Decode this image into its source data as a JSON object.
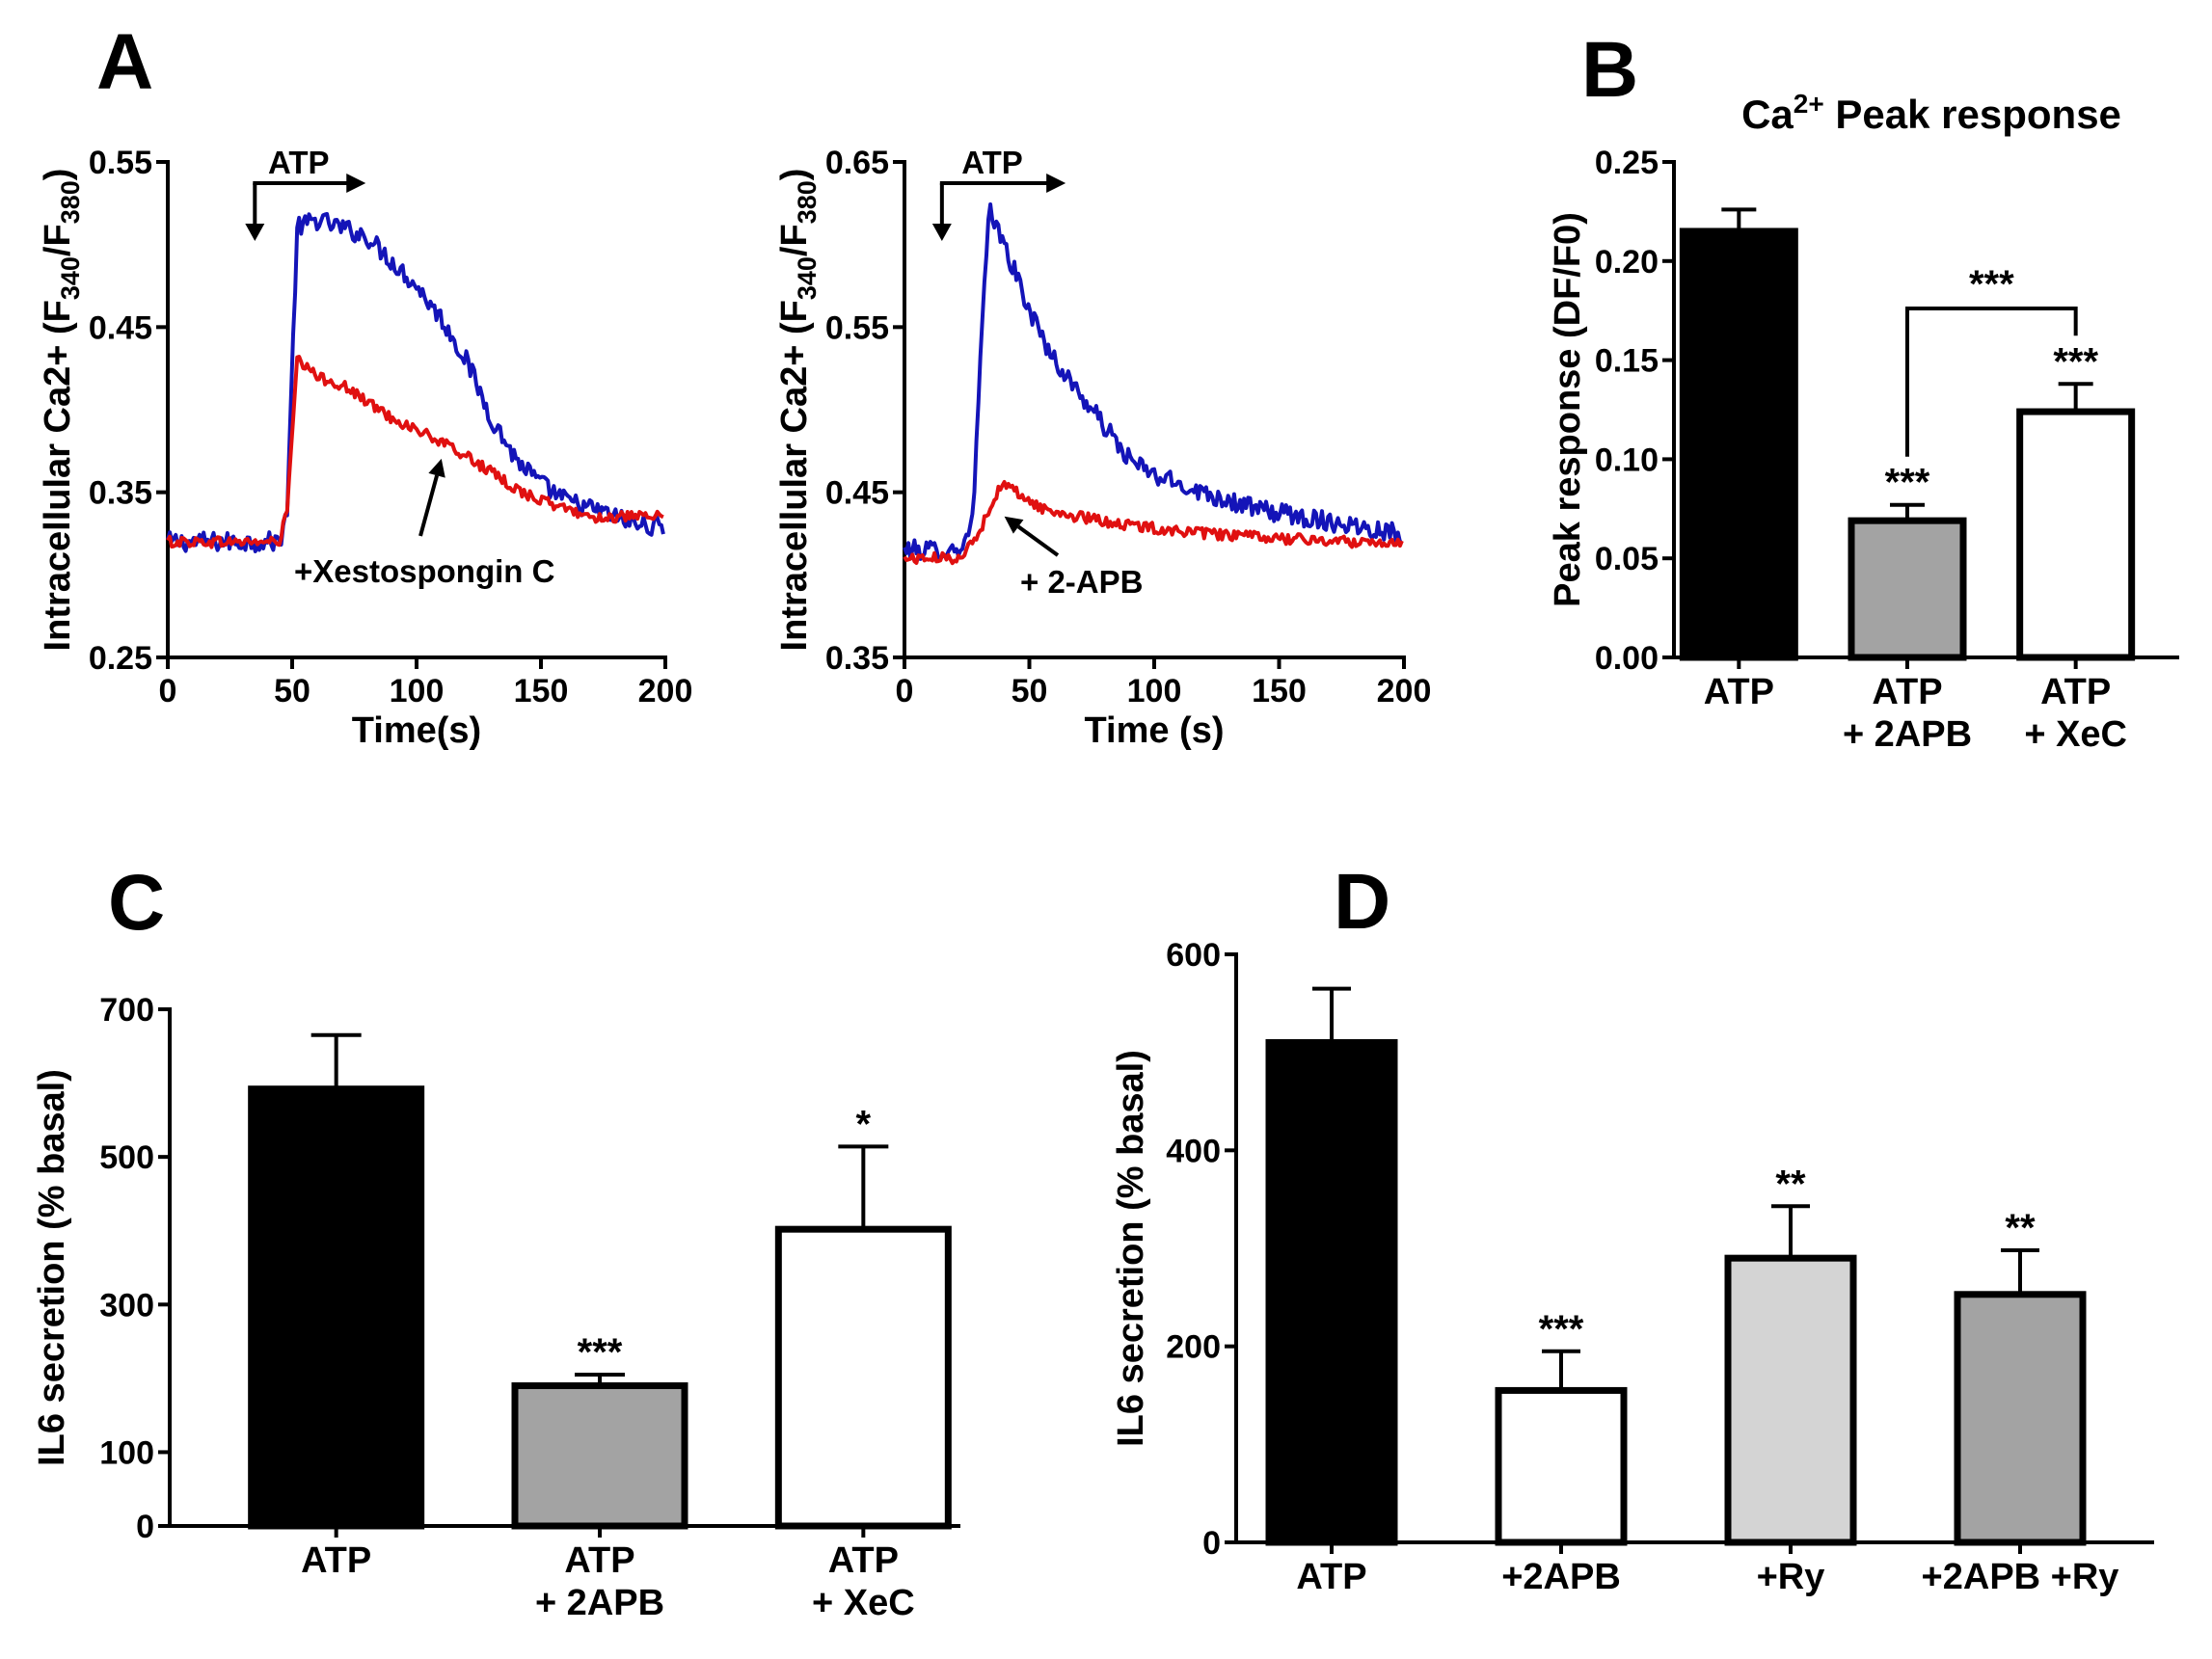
{
  "panel_labels": {
    "a": "A",
    "b": "B",
    "c": "C",
    "d": "D"
  },
  "colors": {
    "control": "#1414b8",
    "treated": "#e01010",
    "black": "#000000",
    "gray": "#a3a3a3",
    "light_gray": "#d4d4d4",
    "white": "#ffffff"
  },
  "chart_data": [
    {
      "id": "A1",
      "type": "line",
      "xlabel": "Time(s)",
      "ylabel_parts": [
        "Intracellular Ca2+ (F",
        "340",
        "/F",
        "380",
        ")"
      ],
      "ylim": [
        0.25,
        0.55
      ],
      "yticks": [
        0.25,
        0.35,
        0.45,
        0.55
      ],
      "ytick_labels": [
        "0.25",
        "0.35",
        "0.45",
        "0.55"
      ],
      "xlim": [
        0,
        200
      ],
      "xticks": [
        0,
        50,
        100,
        150,
        200
      ],
      "xtick_labels": [
        "0",
        "50",
        "100",
        "150",
        "200"
      ],
      "stimulus": {
        "label": "ATP",
        "start_s": 35,
        "end_s": 78
      },
      "annotation": {
        "text": "+Xestospongin C",
        "points_to_s": 110,
        "points_to_value": 0.375
      },
      "series": [
        {
          "name": "control",
          "color": "#1414b8",
          "x": [
            0,
            35,
            40,
            45,
            48,
            52,
            60,
            70,
            80,
            90,
            100,
            110,
            120,
            130,
            140,
            150,
            160,
            170,
            180,
            190,
            200
          ],
          "y": [
            0.32,
            0.32,
            0.32,
            0.32,
            0.34,
            0.51,
            0.515,
            0.51,
            0.505,
            0.49,
            0.475,
            0.455,
            0.43,
            0.395,
            0.37,
            0.355,
            0.345,
            0.34,
            0.335,
            0.33,
            0.33
          ]
        },
        {
          "name": "treated",
          "color": "#e01010",
          "x": [
            0,
            35,
            40,
            45,
            48,
            52,
            60,
            70,
            80,
            90,
            100,
            110,
            120,
            130,
            140,
            150,
            160,
            170,
            180,
            190,
            200
          ],
          "y": [
            0.32,
            0.32,
            0.32,
            0.32,
            0.34,
            0.43,
            0.42,
            0.415,
            0.405,
            0.395,
            0.388,
            0.38,
            0.372,
            0.362,
            0.352,
            0.345,
            0.34,
            0.335,
            0.335,
            0.335,
            0.335
          ]
        }
      ]
    },
    {
      "id": "A2",
      "type": "line",
      "xlabel": "Time (s)",
      "ylabel_parts": [
        "Intracellular Ca2+ (F",
        "340",
        "/F",
        "380",
        ")"
      ],
      "ylim": [
        0.35,
        0.65
      ],
      "yticks": [
        0.35,
        0.45,
        0.55,
        0.65
      ],
      "ytick_labels": [
        "0.35",
        "0.45",
        "0.55",
        "0.65"
      ],
      "xlim": [
        0,
        200
      ],
      "xticks": [
        0,
        50,
        100,
        150,
        200
      ],
      "xtick_labels": [
        "0",
        "50",
        "100",
        "150",
        "200"
      ],
      "stimulus": {
        "label": "ATP",
        "start_s": 15,
        "end_s": 63
      },
      "annotation": {
        "text": "+ 2-APB",
        "points_to_s": 40,
        "points_to_value": 0.44
      },
      "series": [
        {
          "name": "control",
          "color": "#1414b8",
          "x": [
            0,
            20,
            25,
            28,
            31,
            34,
            40,
            50,
            60,
            70,
            80,
            90,
            100,
            120,
            140,
            160,
            180,
            200
          ],
          "y": [
            0.415,
            0.415,
            0.42,
            0.45,
            0.55,
            0.62,
            0.6,
            0.56,
            0.53,
            0.51,
            0.49,
            0.47,
            0.46,
            0.45,
            0.44,
            0.435,
            0.43,
            0.425
          ]
        },
        {
          "name": "treated",
          "color": "#e01010",
          "x": [
            0,
            20,
            25,
            30,
            35,
            40,
            45,
            55,
            70,
            90,
            120,
            150,
            180,
            200
          ],
          "y": [
            0.41,
            0.41,
            0.415,
            0.425,
            0.445,
            0.455,
            0.45,
            0.44,
            0.435,
            0.43,
            0.425,
            0.422,
            0.42,
            0.42
          ]
        }
      ]
    },
    {
      "id": "B",
      "type": "bar",
      "title_parts": [
        "Ca",
        "2+",
        " Peak response"
      ],
      "ylabel": "Peak response (DF/F0)",
      "ylim": [
        0,
        0.25
      ],
      "yticks": [
        0,
        0.05,
        0.1,
        0.15,
        0.2,
        0.25
      ],
      "ytick_labels": [
        "0.00",
        "0.05",
        "0.10",
        "0.15",
        "0.20",
        "0.25"
      ],
      "categories": [
        [
          "ATP"
        ],
        [
          "ATP",
          "+ 2APB"
        ],
        [
          "ATP",
          "+ XeC"
        ]
      ],
      "values": [
        0.215,
        0.069,
        0.124
      ],
      "errors": [
        0.011,
        0.008,
        0.014
      ],
      "fills": [
        "#000000",
        "#a3a3a3",
        "#ffffff"
      ],
      "stars": [
        "",
        "***",
        "***"
      ],
      "bracket": {
        "from": 1,
        "to": 2,
        "label": "***"
      }
    },
    {
      "id": "C",
      "type": "bar",
      "ylabel": "IL6 secretion (% basal)",
      "ylim": [
        0,
        700
      ],
      "yticks": [
        0,
        100,
        300,
        500,
        700
      ],
      "ytick_labels": [
        "0",
        "100",
        "300",
        "500",
        "700"
      ],
      "categories": [
        [
          "ATP"
        ],
        [
          "ATP",
          "+ 2APB"
        ],
        [
          "ATP",
          "+ XeC"
        ]
      ],
      "values": [
        592,
        190,
        402
      ],
      "errors": [
        73,
        15,
        112
      ],
      "fills": [
        "#000000",
        "#a3a3a3",
        "#ffffff"
      ],
      "stars": [
        "",
        "***",
        "*"
      ]
    },
    {
      "id": "D",
      "type": "bar",
      "ylabel": "IL6 secretion (% basal)",
      "ylim": [
        0,
        600
      ],
      "yticks": [
        0,
        200,
        400,
        600
      ],
      "ytick_labels": [
        "0",
        "200",
        "400",
        "600"
      ],
      "categories": [
        [
          "ATP"
        ],
        [
          "+2APB"
        ],
        [
          "+Ry"
        ],
        [
          "+2APB +Ry"
        ]
      ],
      "values": [
        510,
        155,
        290,
        253
      ],
      "errors": [
        55,
        40,
        53,
        45
      ],
      "fills": [
        "#000000",
        "#ffffff",
        "#d4d4d4",
        "#a3a3a3"
      ],
      "stars": [
        "",
        "***",
        "**",
        "**"
      ]
    }
  ]
}
